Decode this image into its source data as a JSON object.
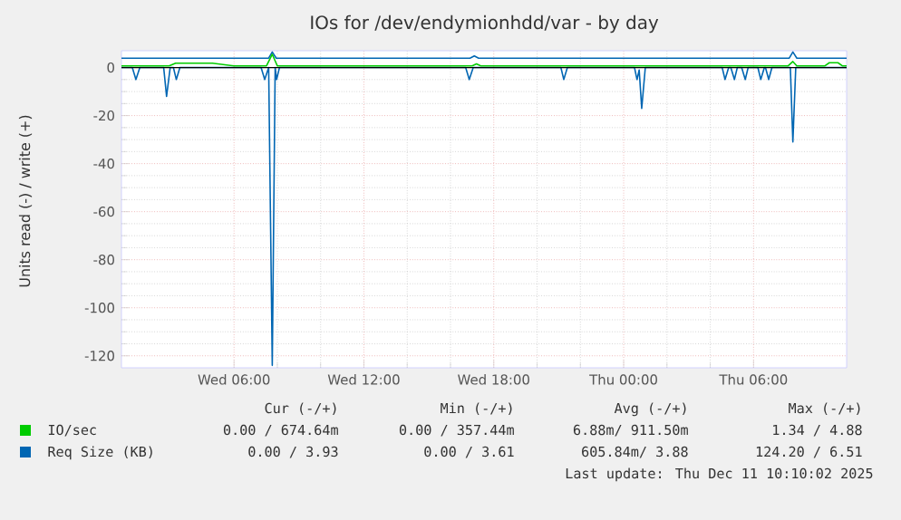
{
  "chart_data": {
    "type": "line",
    "title": "IOs for /dev/endymionhdd/var - by day",
    "ylabel": "Units read (-) / write (+)",
    "xlim": [
      "2025-12-10T00:48",
      "2025-12-11T10:18"
    ],
    "xticks": [
      {
        "value": "2025-12-10T06:00",
        "label": "Wed 06:00"
      },
      {
        "value": "2025-12-10T12:00",
        "label": "Wed 12:00"
      },
      {
        "value": "2025-12-10T18:00",
        "label": "Wed 18:00"
      },
      {
        "value": "2025-12-11T00:00",
        "label": "Thu 00:00"
      },
      {
        "value": "2025-12-11T06:00",
        "label": "Thu 06:00"
      }
    ],
    "ylim": [
      -125,
      7
    ],
    "yticks": [
      -120,
      -100,
      -80,
      -60,
      -40,
      -20,
      0
    ],
    "grid": true,
    "legend": "bottom",
    "line_style": "solid",
    "marker": "none",
    "ref_lines": [
      {
        "axis": "y",
        "value": 0,
        "color": "#000000"
      }
    ],
    "series": [
      {
        "color": "#0066b3",
        "x": [
          "2025-12-10T00:48",
          "2025-12-10T01:18",
          "2025-12-10T01:28",
          "2025-12-10T01:39",
          "2025-12-10T02:45",
          "2025-12-10T02:53",
          "2025-12-10T03:03",
          "2025-12-10T03:12",
          "2025-12-10T03:20",
          "2025-12-10T03:30",
          "2025-12-10T07:15",
          "2025-12-10T07:25",
          "2025-12-10T07:36",
          "2025-12-10T07:46",
          "2025-12-10T07:54",
          "2025-12-10T07:58",
          "2025-12-10T08:06",
          "2025-12-10T16:42",
          "2025-12-10T16:52",
          "2025-12-10T17:03",
          "2025-12-10T21:06",
          "2025-12-10T21:14",
          "2025-12-10T21:24",
          "2025-12-11T00:30",
          "2025-12-11T00:37",
          "2025-12-11T00:43",
          "2025-12-11T00:50",
          "2025-12-11T01:00",
          "2025-12-11T04:33",
          "2025-12-11T04:41",
          "2025-12-11T04:51",
          "2025-12-11T04:57",
          "2025-12-11T05:07",
          "2025-12-11T05:15",
          "2025-12-11T05:27",
          "2025-12-11T05:37",
          "2025-12-11T05:45",
          "2025-12-11T06:12",
          "2025-12-11T06:20",
          "2025-12-11T06:30",
          "2025-12-11T06:33",
          "2025-12-11T06:42",
          "2025-12-11T06:51",
          "2025-12-11T07:42",
          "2025-12-11T07:49",
          "2025-12-11T07:57",
          "2025-12-11T10:18"
        ],
        "values": [
          0,
          0,
          -5,
          0,
          0,
          -12,
          0,
          0,
          -5,
          0,
          0,
          -5,
          0,
          -124,
          0,
          -5,
          0,
          0,
          -5,
          0,
          0,
          -5,
          0,
          0,
          -5,
          -1,
          -17,
          0,
          0,
          -5,
          0,
          0,
          -5,
          0,
          0,
          -5,
          0,
          0,
          -5,
          0,
          0,
          -5,
          0,
          0,
          -31,
          0,
          0
        ]
      },
      {
        "name": "Req Size (KB)",
        "color": "#0066b3",
        "x": [
          "2025-12-10T00:48",
          "2025-12-10T07:36",
          "2025-12-10T07:46",
          "2025-12-10T07:57",
          "2025-12-10T16:54",
          "2025-12-10T17:06",
          "2025-12-10T17:18",
          "2025-12-11T07:39",
          "2025-12-11T07:49",
          "2025-12-11T08:00",
          "2025-12-11T10:18"
        ],
        "values": [
          3.9,
          3.9,
          6.5,
          3.9,
          3.9,
          4.8,
          3.9,
          3.9,
          6.5,
          3.9,
          3.9
        ]
      },
      {
        "name": "IO/sec",
        "color": "#00cc00",
        "x": [
          "2025-12-10T00:48",
          "2025-12-10T03:00",
          "2025-12-10T03:18",
          "2025-12-10T05:00",
          "2025-12-10T06:00",
          "2025-12-10T07:30",
          "2025-12-10T07:46",
          "2025-12-10T08:00",
          "2025-12-10T17:00",
          "2025-12-10T17:12",
          "2025-12-10T17:24",
          "2025-12-11T07:36",
          "2025-12-11T07:49",
          "2025-12-11T08:00",
          "2025-12-11T09:18",
          "2025-12-11T09:30",
          "2025-12-11T09:54",
          "2025-12-11T10:06",
          "2025-12-11T10:18"
        ],
        "values": [
          0.7,
          0.7,
          1.8,
          1.8,
          0.7,
          0.7,
          5.5,
          0.7,
          0.7,
          1.5,
          0.7,
          0.7,
          2.5,
          0.7,
          0.7,
          2,
          2,
          0.7,
          0.7
        ]
      }
    ],
    "annotations": [
      "Cur (-/+)",
      "Min (-/+)",
      "Avg (-/+)",
      "Max (-/+)",
      "0.00 / 674.64m",
      "0.00 / 357.44m",
      "6.88m/ 911.50m",
      "1.34 / 4.88",
      "0.00 / 3.93",
      "0.00 / 3.61",
      "605.84m/ 3.88",
      "124.20 / 6.51",
      "Last update: Thu Dec 11 10:10:02 2025"
    ]
  }
}
